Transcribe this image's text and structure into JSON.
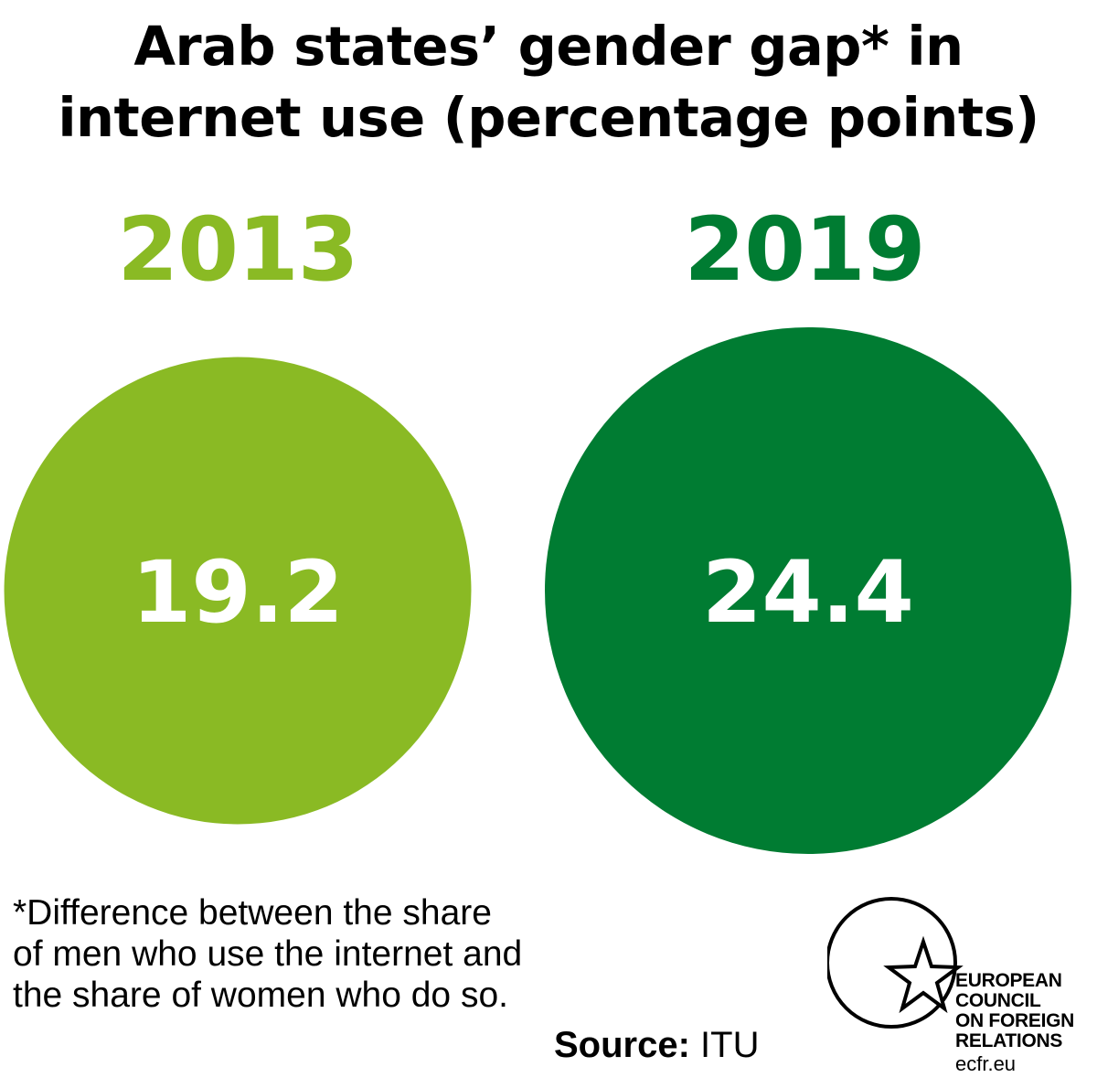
{
  "title": {
    "line1": "Arab states’ gender gap* in",
    "line2": "internet use (percentage points)"
  },
  "chart_data": {
    "type": "bubble",
    "title": "Arab states’ gender gap* in internet use (percentage points)",
    "categories": [
      "2013",
      "2019"
    ],
    "values": [
      19.2,
      24.4
    ],
    "value_labels": [
      "19.2",
      "24.4"
    ],
    "colors": [
      "#8aba24",
      "#007c32"
    ]
  },
  "footnote": "*Difference between the share of men who use the internet and the share of women who do so.",
  "source": {
    "label": "Source:",
    "value": " ITU"
  },
  "logo": {
    "icon": "star-in-circle-icon",
    "lines": [
      "EUROPEAN",
      "COUNCIL",
      "ON FOREIGN",
      "RELATIONS"
    ],
    "url": "ecfr.eu"
  }
}
